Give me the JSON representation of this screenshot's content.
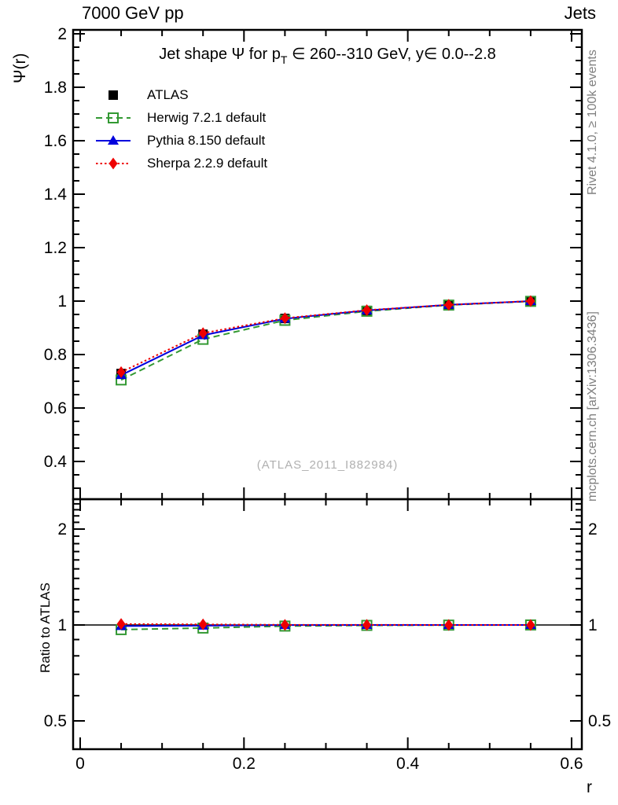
{
  "header": {
    "left": "7000 GeV pp",
    "right": "Jets"
  },
  "title": {
    "prefix": "Jet shape Ψ for p",
    "sub": "T",
    "suffix": " ∈ 260--310 GeV, y∈ 0.0--2.8"
  },
  "watermark": "(ATLAS_2011_I882984)",
  "side": {
    "top": "Rivet 4.1.0, ≥ 100k events",
    "bottom": "mcplots.cern.ch [arXiv:1306.3436]"
  },
  "chart_data": {
    "type": "line",
    "title": "Jet shape Ψ for p_T ∈ 260--310 GeV, y∈ 0.0--2.8",
    "xlabel": "r",
    "ylabel": "Ψ(r)",
    "ratio_ylabel": "Ratio to ATLAS",
    "grid": false,
    "legend_position": "top-left",
    "x": [
      0.05,
      0.15,
      0.25,
      0.35,
      0.45,
      0.55
    ],
    "xlim": [
      -0.0086,
      0.6125
    ],
    "x_ticks": {
      "values": [
        0,
        0.2,
        0.4,
        0.6
      ],
      "labels": [
        "0",
        "0.2",
        "0.4",
        "0.6"
      ],
      "minor_step": 0.05
    },
    "main_ylim": [
      0.2588,
      2.0147
    ],
    "main_yticks": {
      "values": [
        0.4,
        0.6,
        0.8,
        1,
        1.2,
        1.4,
        1.6,
        1.8,
        2
      ],
      "labels": [
        "0.4",
        "0.6",
        "0.8",
        "1",
        "1.2",
        "1.4",
        "1.6",
        "1.8",
        "2"
      ],
      "minor_step": 0.05
    },
    "ratio_ylim": [
      0.4075,
      2.482
    ],
    "ratio_scale": "log",
    "ratio_yticks": {
      "values": [
        0.5,
        1,
        2
      ],
      "labels": [
        "0.5",
        "1",
        "2"
      ],
      "minor_step_linear": 0.1
    },
    "ratio_reference": 1,
    "series": [
      {
        "name": "ATLAS",
        "color": "#000000",
        "marker": "square-filled",
        "line": "none",
        "values": [
          0.729,
          0.876,
          0.935,
          0.965,
          0.986,
          1.0
        ],
        "ratio": null
      },
      {
        "name": "Herwig 7.2.1 default",
        "color": "#339933",
        "marker": "square-open",
        "line": "dashed",
        "values": [
          0.705,
          0.857,
          0.928,
          0.962,
          0.985,
          0.999
        ],
        "ratio": [
          0.967,
          0.978,
          0.992,
          0.997,
          0.999,
          1.0
        ]
      },
      {
        "name": "Pythia 8.150 default",
        "color": "#0000dd",
        "marker": "triangle-filled",
        "line": "solid",
        "values": [
          0.723,
          0.872,
          0.934,
          0.965,
          0.986,
          1.0
        ],
        "ratio": [
          0.992,
          0.995,
          0.999,
          1.0,
          1.0,
          1.0
        ]
      },
      {
        "name": "Sherpa 2.2.9 default",
        "color": "#ee0000",
        "marker": "diamond-filled",
        "line": "dotted",
        "values": [
          0.734,
          0.88,
          0.936,
          0.966,
          0.986,
          1.0
        ],
        "ratio": [
          1.007,
          1.004,
          1.001,
          1.001,
          1.0,
          1.0
        ]
      }
    ]
  }
}
